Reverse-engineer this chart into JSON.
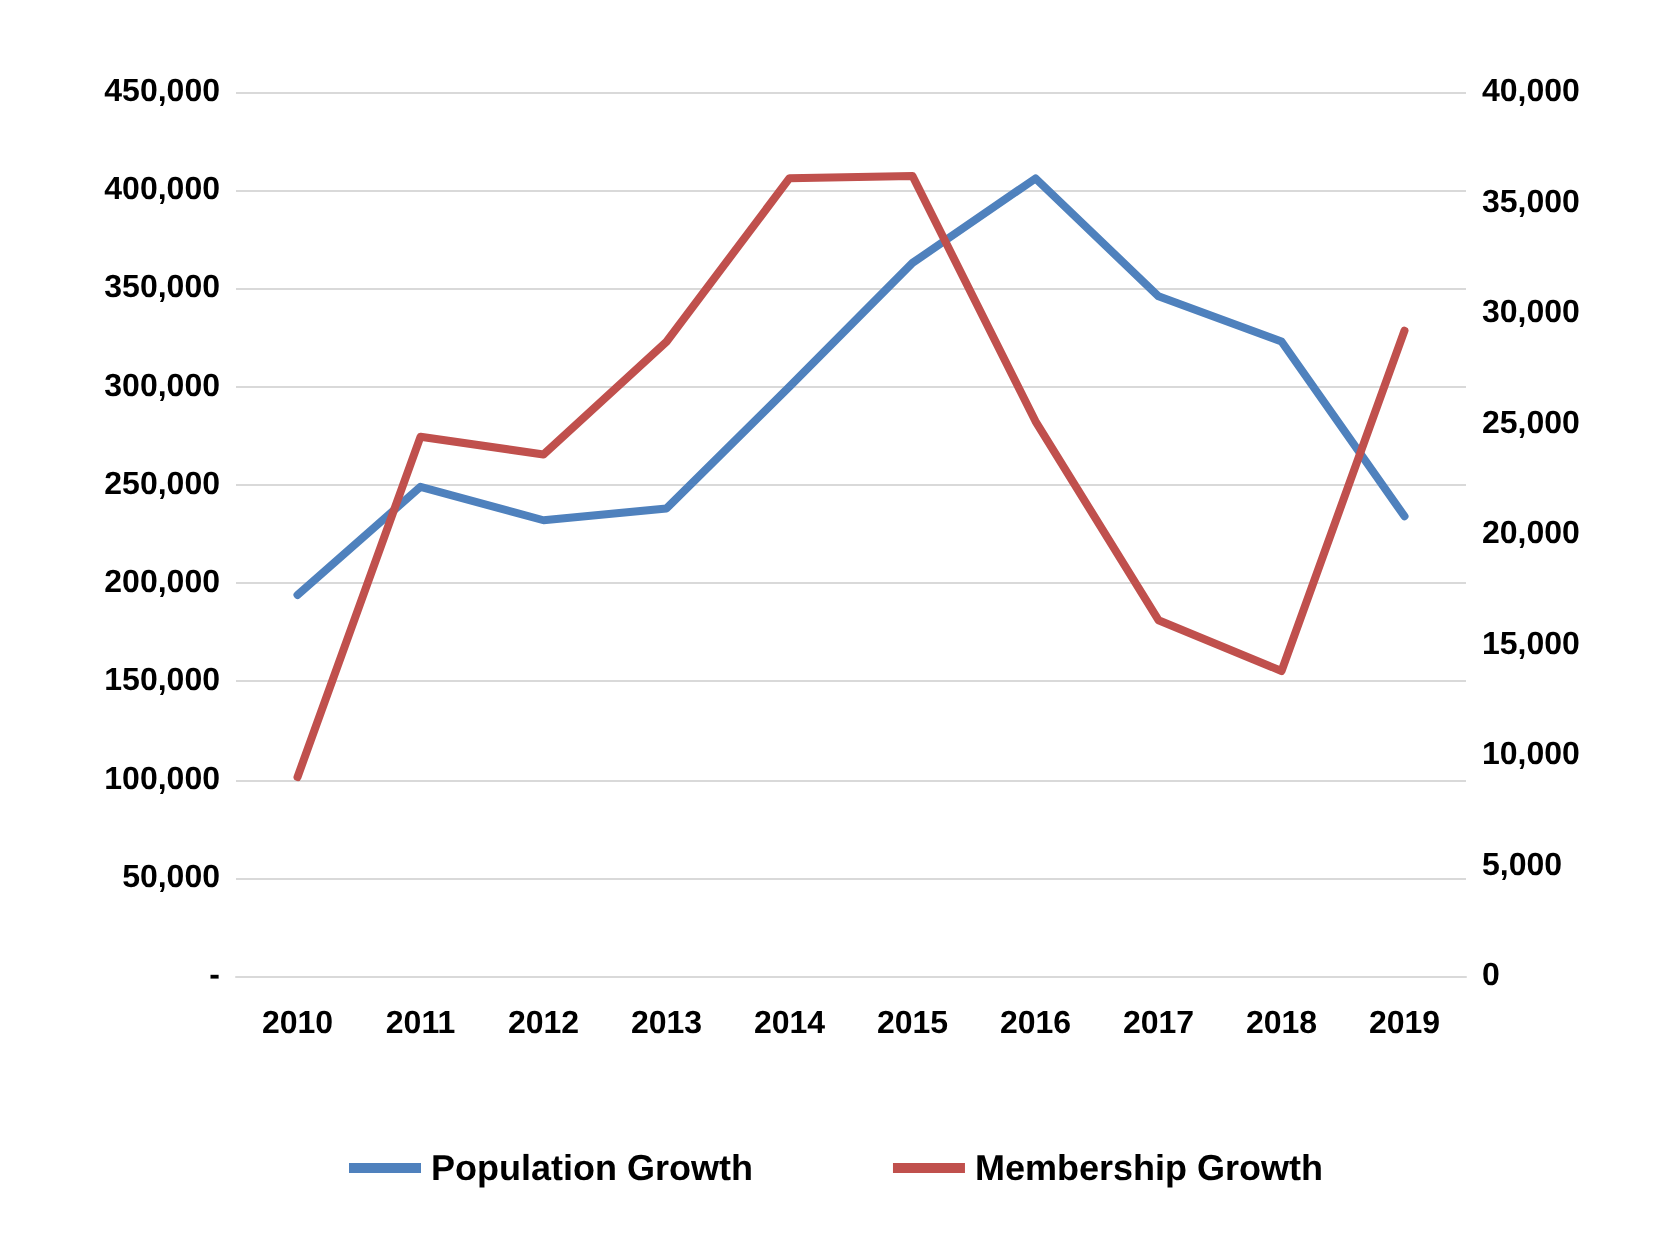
{
  "chart_data": {
    "type": "line",
    "categories": [
      "2010",
      "2011",
      "2012",
      "2013",
      "2014",
      "2015",
      "2016",
      "2017",
      "2018",
      "2019"
    ],
    "series": [
      {
        "name": "Population Growth",
        "color": "#4f81bd",
        "values": [
          194000,
          249000,
          232000,
          238000,
          300000,
          363000,
          406000,
          346000,
          323000,
          234000
        ]
      },
      {
        "name": "Membership Growth",
        "color": "#c0504d",
        "axis": "y2",
        "values": [
          9000,
          24400,
          23600,
          28700,
          36100,
          36200,
          25100,
          16100,
          13800,
          29200
        ]
      }
    ],
    "ylim": [
      0,
      450000
    ],
    "yticks": [
      {
        "value": 0,
        "label": "-"
      },
      {
        "value": 50000,
        "label": "50,000"
      },
      {
        "value": 100000,
        "label": "100,000"
      },
      {
        "value": 150000,
        "label": "150,000"
      },
      {
        "value": 200000,
        "label": "200,000"
      },
      {
        "value": 250000,
        "label": "250,000"
      },
      {
        "value": 300000,
        "label": "300,000"
      },
      {
        "value": 350000,
        "label": "350,000"
      },
      {
        "value": 400000,
        "label": "400,000"
      },
      {
        "value": 450000,
        "label": "450,000"
      }
    ],
    "y2lim": [
      0,
      40000
    ],
    "y2ticks": [
      0,
      {
        "value": 5000,
        "label": "5,000"
      },
      {
        "value": 10000,
        "label": "10,000"
      },
      {
        "value": 15000,
        "label": "15,000"
      },
      {
        "value": 20000,
        "label": "20,000"
      },
      {
        "value": 25000,
        "label": "25,000"
      },
      {
        "value": 30000,
        "label": "30,000"
      },
      {
        "value": 35000,
        "label": "35,000"
      },
      {
        "value": 40000,
        "label": "40,000"
      }
    ],
    "grid": "y",
    "legend": "bottom",
    "marker": "none",
    "line_style": "solid"
  }
}
